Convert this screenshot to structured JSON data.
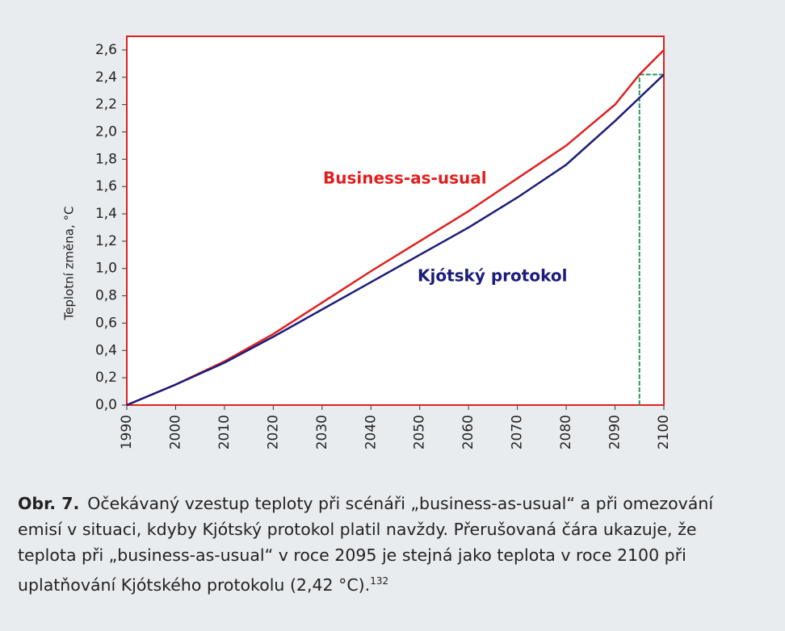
{
  "chart_data": {
    "type": "line",
    "y_label": "Teplotní změna, °C",
    "xlim": [
      1990,
      2100
    ],
    "ylim": [
      0,
      2.7
    ],
    "xticks": [
      1990,
      2000,
      2010,
      2020,
      2030,
      2040,
      2050,
      2060,
      2070,
      2080,
      2090,
      2100
    ],
    "yticks": [
      {
        "value": 0,
        "label": "0,0"
      },
      {
        "value": 0.2,
        "label": "0,2"
      },
      {
        "value": 0.4,
        "label": "0,4"
      },
      {
        "value": 0.6,
        "label": "0,6"
      },
      {
        "value": 0.8,
        "label": "0,8"
      },
      {
        "value": 1,
        "label": "1,0"
      },
      {
        "value": 1.2,
        "label": "1,2"
      },
      {
        "value": 1.4,
        "label": "1,4"
      },
      {
        "value": 1.6,
        "label": "1,6"
      },
      {
        "value": 1.8,
        "label": "1,8"
      },
      {
        "value": 2,
        "label": "2,0"
      },
      {
        "value": 2.2,
        "label": "2,2"
      },
      {
        "value": 2.4,
        "label": "2,4"
      },
      {
        "value": 2.6,
        "label": "2,6"
      }
    ],
    "series": [
      {
        "name": "Business-as-usual",
        "color": "#e02020",
        "x": [
          1990,
          2000,
          2010,
          2020,
          2030,
          2040,
          2050,
          2060,
          2070,
          2080,
          2090,
          2095,
          2100
        ],
        "values": [
          0,
          0.15,
          0.32,
          0.52,
          0.75,
          0.98,
          1.2,
          1.42,
          1.66,
          1.9,
          2.2,
          2.42,
          2.6
        ]
      },
      {
        "name": "Kjótský protokol",
        "color": "#1c1c7a",
        "x": [
          1990,
          2000,
          2010,
          2020,
          2030,
          2040,
          2050,
          2060,
          2070,
          2080,
          2090,
          2100
        ],
        "values": [
          0,
          0.15,
          0.31,
          0.5,
          0.7,
          0.9,
          1.1,
          1.3,
          1.52,
          1.76,
          2.08,
          2.42
        ]
      }
    ],
    "reference": {
      "color": "#2e9a5a",
      "x": 2095,
      "y": 2.42
    }
  },
  "caption": {
    "label": "Obr. 7.",
    "text": "Očekávaný vzestup teploty při scénáři „business-as-usual“ a při omezování emisí v situaci, kdyby Kjótský protokol platil navždy. Přerušovaná čára ukazuje, že teplota při „business-as-usual“ v roce 2095 je stejná jako teplota v roce 2100 při uplatňování Kjótského protokolu (2,42 °C).",
    "footnote": "132"
  }
}
